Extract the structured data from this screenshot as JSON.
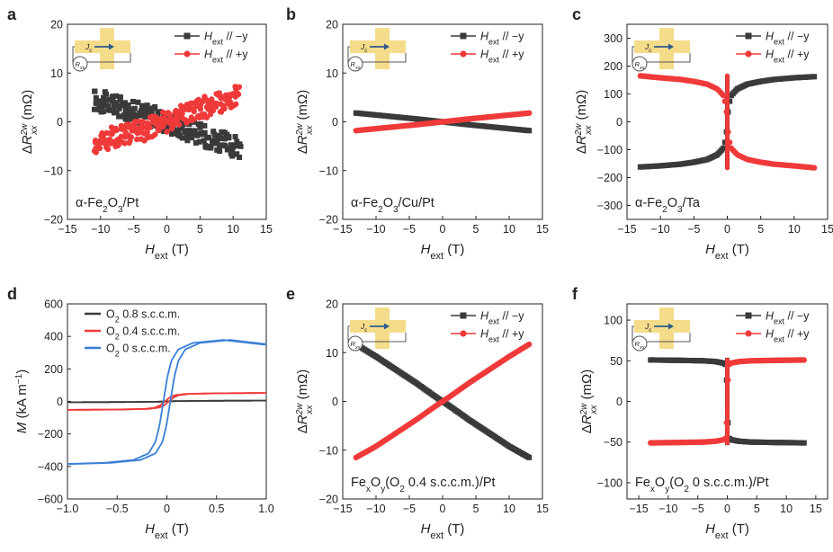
{
  "colors": {
    "black_series": "#3a3a3a",
    "red_series": "#f03a3a",
    "blue_series": "#3a7fd6",
    "inset_bar": "#f5dc8a",
    "inset_arrow": "#2d5a8a"
  },
  "panel_labels": [
    "a",
    "b",
    "c",
    "d",
    "e",
    "f"
  ],
  "legend_text": {
    "h_symbol": "H",
    "h_sub": "ext",
    "minus_y": " // −y",
    "plus_y": " // +y",
    "o2_08": "O",
    "o2_08_rest": " 0.8 s.c.c.m.",
    "o2_04": "O",
    "o2_04_rest": " 0.4 s.c.c.m.",
    "o2_0": "O",
    "o2_0_rest": " 0 s.c.c.m.",
    "o2_sub": "2"
  },
  "inset": {
    "current_label": "J",
    "current_sub": "c",
    "resistor_label": "R",
    "resistor_sub": "xx"
  },
  "axis_text": {
    "x_symbol": "H",
    "x_sub": "ext",
    "x_unit": " (T)",
    "y_delta": "ΔR",
    "y_sup": "2w",
    "y_sub": "xx",
    "y_unit": " (mΩ)",
    "m_symbol": "M",
    "m_unit": " (kA m",
    "m_exp": "−1",
    "m_close": ")"
  },
  "sample_labels": {
    "a": {
      "pre": "α-Fe",
      "s1": "2",
      "mid": "O",
      "s2": "3",
      "post": "/Pt"
    },
    "b": {
      "pre": "α-Fe",
      "s1": "2",
      "mid": "O",
      "s2": "3",
      "post": "/Cu/Pt"
    },
    "c": {
      "pre": "α-Fe",
      "s1": "2",
      "mid": "O",
      "s2": "3",
      "post": "/Ta"
    },
    "e": {
      "pre": "Fe",
      "s1": "x",
      "mid": "O",
      "s2": "y",
      "mid2": "(O",
      "s3": "2",
      "post": " 0.4 s.c.c.m.)/Pt"
    },
    "f": {
      "pre": "Fe",
      "s1": "x",
      "mid": "O",
      "s2": "y",
      "mid2": "(O",
      "s3": "2",
      "post": " 0 s.c.c.m.)/Pt"
    }
  },
  "chart_data": [
    {
      "panel": "a",
      "type": "scatter",
      "xlabel": "Hext (T)",
      "ylabel": "ΔR2w_xx (mΩ)",
      "xlim": [
        -15,
        15
      ],
      "ylim": [
        -20,
        20
      ],
      "xticks": [
        -15,
        -10,
        -5,
        0,
        5,
        10,
        15
      ],
      "yticks": [
        -20,
        -10,
        0,
        10,
        20
      ],
      "series": [
        {
          "name": "Hext // −y",
          "color": "black",
          "x": [
            -11,
            -9,
            -7,
            -5,
            -3,
            -1,
            0,
            1,
            3,
            5,
            7,
            9,
            11
          ],
          "y": [
            4.5,
            3.8,
            3,
            2,
            1.5,
            0.5,
            0,
            -0.5,
            -1.5,
            -2.5,
            -3.5,
            -4.5,
            -5.5
          ]
        },
        {
          "name": "Hext // +y",
          "color": "red",
          "x": [
            -11,
            -9,
            -7,
            -5,
            -3,
            -1,
            0,
            1,
            3,
            5,
            7,
            9,
            11
          ],
          "y": [
            -4.5,
            -3.5,
            -2.8,
            -2,
            -1.5,
            -0.5,
            0,
            1,
            1.8,
            2.8,
            3.5,
            4.5,
            5.5
          ]
        }
      ]
    },
    {
      "panel": "b",
      "type": "scatter",
      "xlabel": "Hext (T)",
      "ylabel": "ΔR2w_xx (mΩ)",
      "xlim": [
        -15,
        15
      ],
      "ylim": [
        -20,
        20
      ],
      "xticks": [
        -15,
        -10,
        -5,
        0,
        5,
        10,
        15
      ],
      "yticks": [
        -20,
        -10,
        0,
        10,
        20
      ],
      "series": [
        {
          "name": "Hext // −y",
          "color": "black",
          "x": [
            -13,
            -10,
            -7,
            -4,
            -1,
            0,
            1,
            4,
            7,
            10,
            13
          ],
          "y": [
            1.8,
            1.4,
            1,
            0.6,
            0.15,
            0,
            -0.15,
            -0.6,
            -1,
            -1.4,
            -1.8
          ]
        },
        {
          "name": "Hext // +y",
          "color": "red",
          "x": [
            -13,
            -10,
            -7,
            -4,
            -1,
            0,
            1,
            4,
            7,
            10,
            13
          ],
          "y": [
            -1.8,
            -1.4,
            -1,
            -0.6,
            -0.15,
            0,
            0.15,
            0.6,
            1,
            1.4,
            1.8
          ]
        }
      ]
    },
    {
      "panel": "c",
      "type": "scatter",
      "xlabel": "Hext (T)",
      "ylabel": "ΔR2w_xx (mΩ)",
      "xlim": [
        -15,
        15
      ],
      "ylim": [
        -350,
        350
      ],
      "xticks": [
        -15,
        -10,
        -5,
        0,
        5,
        10,
        15
      ],
      "yticks": [
        -300,
        -200,
        -100,
        0,
        100,
        200,
        300
      ],
      "series": [
        {
          "name": "Hext // −y",
          "color": "black",
          "x": [
            -13,
            -10,
            -7,
            -5,
            -3,
            -1.5,
            -0.6,
            -0.2,
            0,
            0.2,
            0.6,
            1.5,
            3,
            5,
            7,
            10,
            13
          ],
          "y": [
            -162,
            -158,
            -152,
            -145,
            -135,
            -118,
            -95,
            -60,
            0,
            60,
            95,
            118,
            135,
            145,
            152,
            158,
            162
          ]
        },
        {
          "name": "Hext // +y",
          "color": "red",
          "x": [
            -13,
            -10,
            -7,
            -5,
            -3,
            -1.5,
            -0.6,
            -0.2,
            0,
            0.2,
            0.6,
            1.5,
            3,
            5,
            7,
            10,
            13
          ],
          "y": [
            165,
            158,
            152,
            145,
            135,
            118,
            95,
            60,
            0,
            -60,
            -95,
            -118,
            -135,
            -145,
            -152,
            -158,
            -165
          ]
        }
      ]
    },
    {
      "panel": "d",
      "type": "line",
      "xlabel": "Hext (T)",
      "ylabel": "M (kA m−1)",
      "xlim": [
        -1.0,
        1.0
      ],
      "ylim": [
        -600,
        600
      ],
      "xticks": [
        -1.0,
        -0.5,
        0,
        0.5,
        1.0
      ],
      "yticks": [
        -600,
        -400,
        -200,
        0,
        200,
        400,
        600
      ],
      "series": [
        {
          "name": "O2 0.8 s.c.c.m.",
          "color": "black",
          "x": [
            -1.0,
            -0.5,
            -0.1,
            0,
            0.1,
            0.5,
            1.0
          ],
          "y": [
            -5,
            -4,
            -2,
            0,
            2,
            4,
            5
          ]
        },
        {
          "name": "O2 0.4 s.c.c.m.",
          "color": "red",
          "x": [
            -1.0,
            -0.5,
            -0.2,
            -0.1,
            -0.05,
            0,
            0.05,
            0.1,
            0.2,
            0.5,
            1.0
          ],
          "y": [
            -52,
            -50,
            -46,
            -38,
            -25,
            0,
            25,
            38,
            46,
            50,
            52
          ]
        },
        {
          "name": "O2 0 s.c.c.m.",
          "color": "blue",
          "x": [
            -1.0,
            -0.6,
            -0.3,
            -0.15,
            -0.08,
            -0.04,
            0,
            0.04,
            0.08,
            0.15,
            0.3,
            0.6,
            1.0
          ],
          "y": [
            -385,
            -378,
            -360,
            -320,
            -250,
            -150,
            0,
            150,
            250,
            320,
            360,
            378,
            350
          ]
        }
      ]
    },
    {
      "panel": "e",
      "type": "scatter",
      "xlabel": "Hext (T)",
      "ylabel": "ΔR2w_xx (mΩ)",
      "xlim": [
        -15,
        15
      ],
      "ylim": [
        -20,
        20
      ],
      "xticks": [
        -15,
        -10,
        -5,
        0,
        5,
        10,
        15
      ],
      "yticks": [
        -20,
        -10,
        0,
        10,
        20
      ],
      "series": [
        {
          "name": "Hext // −y",
          "color": "black",
          "x": [
            -13,
            -10,
            -7,
            -4,
            -1,
            0,
            1,
            4,
            7,
            10,
            13
          ],
          "y": [
            11.7,
            9.2,
            6.5,
            3.8,
            0.9,
            0,
            -0.9,
            -3.8,
            -6.5,
            -9.2,
            -11.5
          ]
        },
        {
          "name": "Hext // +y",
          "color": "red",
          "x": [
            -13,
            -10,
            -7,
            -4,
            -1,
            0,
            1,
            4,
            7,
            10,
            13
          ],
          "y": [
            -11.5,
            -9.2,
            -6.5,
            -3.8,
            -0.9,
            0,
            0.9,
            3.8,
            6.5,
            9.2,
            11.7
          ]
        }
      ]
    },
    {
      "panel": "f",
      "type": "scatter",
      "xlabel": "Hext (T)",
      "ylabel": "ΔR2w_xx (mΩ)",
      "xlim": [
        -17,
        17
      ],
      "ylim": [
        -120,
        120
      ],
      "xticks": [
        -15,
        -10,
        -5,
        0,
        5,
        10,
        15
      ],
      "yticks": [
        -100,
        -50,
        0,
        50,
        100
      ],
      "series": [
        {
          "name": "Hext // −y",
          "color": "black",
          "x": [
            -13,
            -8,
            -4,
            -2,
            -0.5,
            -0.2,
            0,
            0.2,
            0.5,
            2,
            4,
            8,
            13
          ],
          "y": [
            51,
            50.5,
            50,
            49,
            47,
            44,
            0,
            -44,
            -47,
            -49,
            -50,
            -50.5,
            -51
          ]
        },
        {
          "name": "Hext // +y",
          "color": "red",
          "x": [
            -13,
            -8,
            -4,
            -2,
            -0.5,
            -0.2,
            0,
            0.2,
            0.5,
            2,
            4,
            8,
            13
          ],
          "y": [
            -51,
            -50.5,
            -50,
            -49,
            -47,
            -44,
            0,
            44,
            47,
            49,
            50,
            50.5,
            51
          ]
        }
      ]
    }
  ]
}
